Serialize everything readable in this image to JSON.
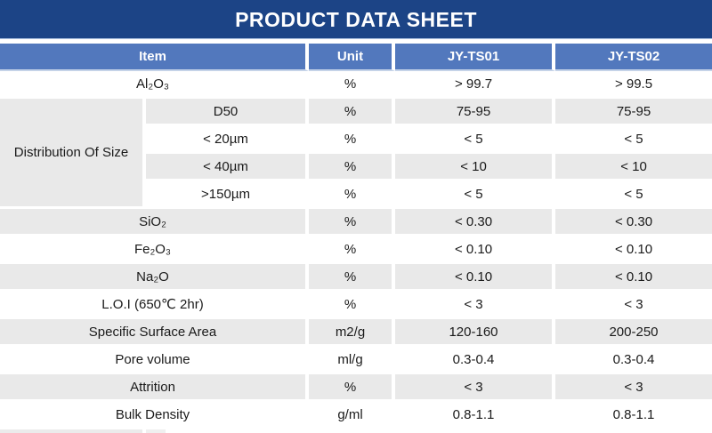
{
  "title": "PRODUCT DATA SHEET",
  "colors": {
    "title_bar_bg": "#1c4486",
    "header_bg": "#5278bd",
    "shaded_row_bg": "#e9e9e9",
    "plain_row_bg": "#ffffff",
    "header_text": "#ffffff",
    "body_text": "#1a1a1a"
  },
  "table": {
    "headers": [
      "Item",
      "Unit",
      "JY-TS01",
      "JY-TS02"
    ],
    "rows": [
      {
        "item": "Al₂O₃",
        "unit": "%",
        "ts01": "> 99.7",
        "ts02": "> 99.5",
        "shade": false
      },
      {
        "group": "Distribution Of Size",
        "group_span": 4,
        "item": "D50",
        "unit": "%",
        "ts01": "75-95",
        "ts02": "75-95",
        "shade": true
      },
      {
        "in_group": true,
        "item": "< 20µm",
        "unit": "%",
        "ts01": "< 5",
        "ts02": "< 5",
        "shade": false
      },
      {
        "in_group": true,
        "item": "< 40µm",
        "unit": "%",
        "ts01": "< 10",
        "ts02": "< 10",
        "shade": true
      },
      {
        "in_group": true,
        "item": ">150µm",
        "unit": "%",
        "ts01": "< 5",
        "ts02": "< 5",
        "shade": false
      },
      {
        "item": "SiO₂",
        "unit": "%",
        "ts01": "< 0.30",
        "ts02": "< 0.30",
        "shade": true
      },
      {
        "item": "Fe₂O₃",
        "unit": "%",
        "ts01": "< 0.10",
        "ts02": "< 0.10",
        "shade": false
      },
      {
        "item": "Na₂O",
        "unit": "%",
        "ts01": "< 0.10",
        "ts02": "< 0.10",
        "shade": true
      },
      {
        "item": "L.O.I (650℃ 2hr)",
        "unit": "%",
        "ts01": "< 3",
        "ts02": "< 3",
        "shade": false
      },
      {
        "item": "Specific Surface Area",
        "unit": "m2/g",
        "ts01": "120-160",
        "ts02": "200-250",
        "shade": true
      },
      {
        "item": "Pore volume",
        "unit": "ml/g",
        "ts01": "0.3-0.4",
        "ts02": "0.3-0.4",
        "shade": false
      },
      {
        "item": "Attrition",
        "unit": "%",
        "ts01": "< 3",
        "ts02": "< 3",
        "shade": true
      },
      {
        "item": "Bulk Density",
        "unit": "g/ml",
        "ts01": "0.8-1.1",
        "ts02": "0.8-1.1",
        "shade": false
      }
    ]
  }
}
